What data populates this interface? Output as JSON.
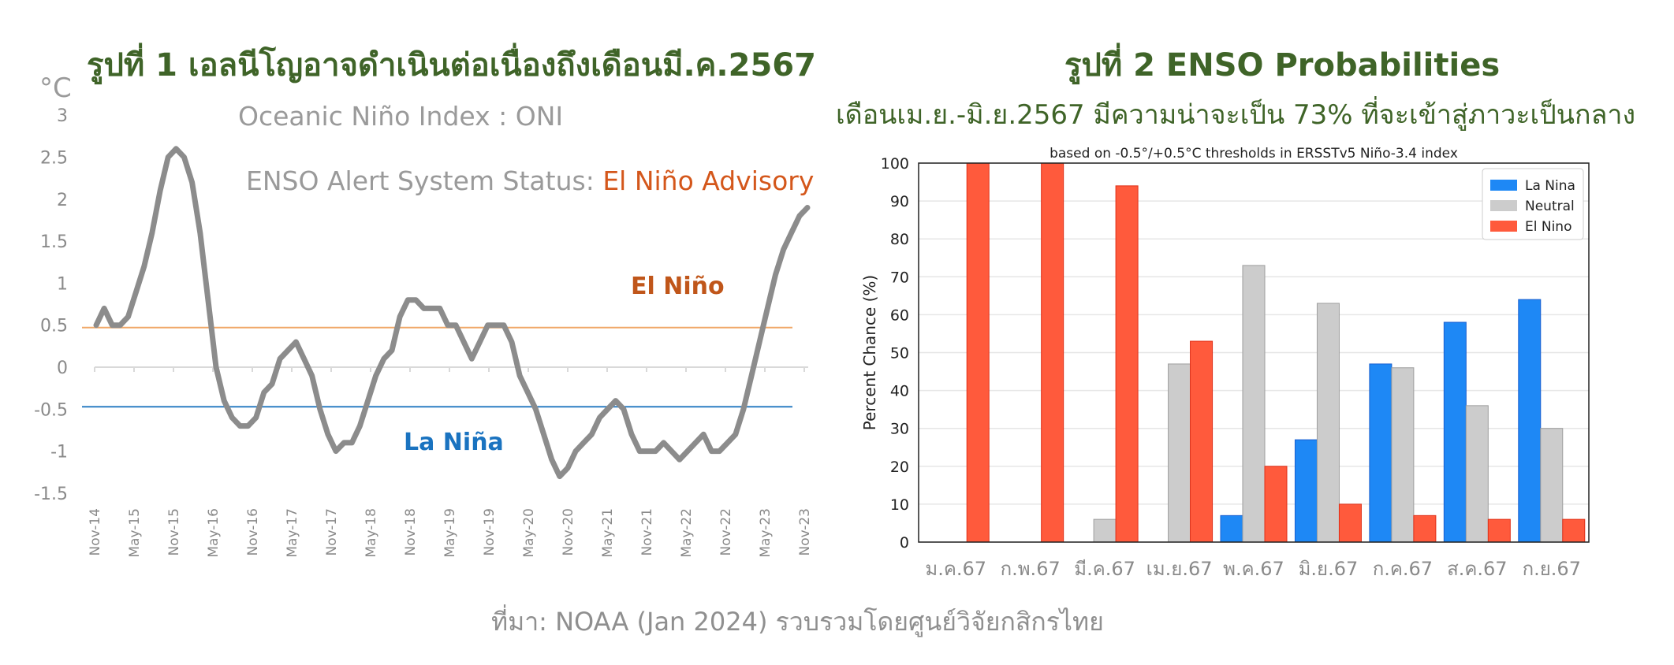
{
  "left": {
    "title": "รูปที่ 1 เอลนีโญอาจดำเนินต่อเนื่องถึงเดือนมี.ค.2567",
    "unit": "°C",
    "oni_label": "Oceanic Niño Index : ONI",
    "status_label": "ENSO Alert System Status: ",
    "status_value": "El Niño Advisory",
    "el_nino_label": "El Niño",
    "la_nina_label": "La Niña"
  },
  "right": {
    "title": "รูปที่ 2 ENSO Probabilities",
    "subtitle": "เดือนเม.ย.-มิ.ย.2567 มีความน่าจะเป็น 73% ที่จะเข้าสู่ภาวะเป็นกลาง"
  },
  "source": "ที่มา: NOAA (Jan 2024) รวบรวมโดยศูนย์วิจัยกสิกรไทย",
  "colors": {
    "title_green": "#3f6428",
    "oni_line": "#8c8c8c",
    "el_nino_threshold": "#f0a868",
    "la_nina_threshold": "#2d7fc4",
    "la_nina_bar": "#1e88f5",
    "neutral_bar": "#cccccc",
    "el_nino_bar": "#ff5a3c"
  },
  "chart_data": [
    {
      "type": "line",
      "ylim": [
        -1.5,
        3
      ],
      "yticks": [
        "3",
        "2.5",
        "2",
        "1.5",
        "1",
        "0.5",
        "0",
        "-0.5",
        "-1",
        "-1.5"
      ],
      "ytick_values": [
        3,
        2.5,
        2,
        1.5,
        1,
        0.5,
        0,
        -0.5,
        -1,
        -1.5
      ],
      "xticks": [
        "Nov-14",
        "May-15",
        "Nov-15",
        "May-16",
        "Nov-16",
        "May-17",
        "Nov-17",
        "May-18",
        "Nov-18",
        "May-19",
        "Nov-19",
        "May-20",
        "Nov-20",
        "May-21",
        "Nov-21",
        "May-22",
        "Nov-22",
        "May-23",
        "Nov-23"
      ],
      "thresholds": [
        0.5,
        -0.5
      ],
      "series": [
        {
          "values": [
            0.5,
            0.7,
            0.5,
            0.5,
            0.6,
            0.9,
            1.2,
            1.6,
            2.1,
            2.5,
            2.6,
            2.5,
            2.2,
            1.6,
            0.8,
            0.0,
            -0.4,
            -0.6,
            -0.7,
            -0.7,
            -0.6,
            -0.3,
            -0.2,
            0.1,
            0.2,
            0.3,
            0.1,
            -0.1,
            -0.5,
            -0.8,
            -1.0,
            -0.9,
            -0.9,
            -0.7,
            -0.4,
            -0.1,
            0.1,
            0.2,
            0.6,
            0.8,
            0.8,
            0.7,
            0.7,
            0.7,
            0.5,
            0.5,
            0.3,
            0.1,
            0.3,
            0.5,
            0.5,
            0.5,
            0.3,
            -0.1,
            -0.3,
            -0.5,
            -0.8,
            -1.1,
            -1.3,
            -1.2,
            -1.0,
            -0.9,
            -0.8,
            -0.6,
            -0.5,
            -0.4,
            -0.5,
            -0.8,
            -1.0,
            -1.0,
            -1.0,
            -0.9,
            -1.0,
            -1.1,
            -1.0,
            -0.9,
            -0.8,
            -1.0,
            -1.0,
            -0.9,
            -0.8,
            -0.5,
            -0.1,
            0.3,
            0.7,
            1.1,
            1.4,
            1.6,
            1.8,
            1.9
          ]
        }
      ]
    },
    {
      "type": "bar",
      "title": "based on -0.5°/+0.5°C thresholds in ERSSTv5 Niño-3.4 index",
      "ylabel": "Percent Chance (%)",
      "ylim": [
        0,
        100
      ],
      "yticks": [
        0,
        10,
        20,
        30,
        40,
        50,
        60,
        70,
        80,
        90,
        100
      ],
      "categories": [
        "ม.ค.67",
        "ก.พ.67",
        "มี.ค.67",
        "เม.ย.67",
        "พ.ค.67",
        "มิ.ย.67",
        "ก.ค.67",
        "ส.ค.67",
        "ก.ย.67"
      ],
      "legend": "top-right",
      "series": [
        {
          "name": "La Nina",
          "color": "#1e88f5",
          "values": [
            0,
            0,
            0,
            0,
            7,
            27,
            47,
            58,
            64
          ]
        },
        {
          "name": "Neutral",
          "color": "#cccccc",
          "values": [
            0,
            0,
            6,
            47,
            73,
            63,
            46,
            36,
            30
          ]
        },
        {
          "name": "El Nino",
          "color": "#ff5a3c",
          "values": [
            100,
            100,
            94,
            53,
            20,
            10,
            7,
            6,
            6
          ]
        }
      ]
    }
  ]
}
